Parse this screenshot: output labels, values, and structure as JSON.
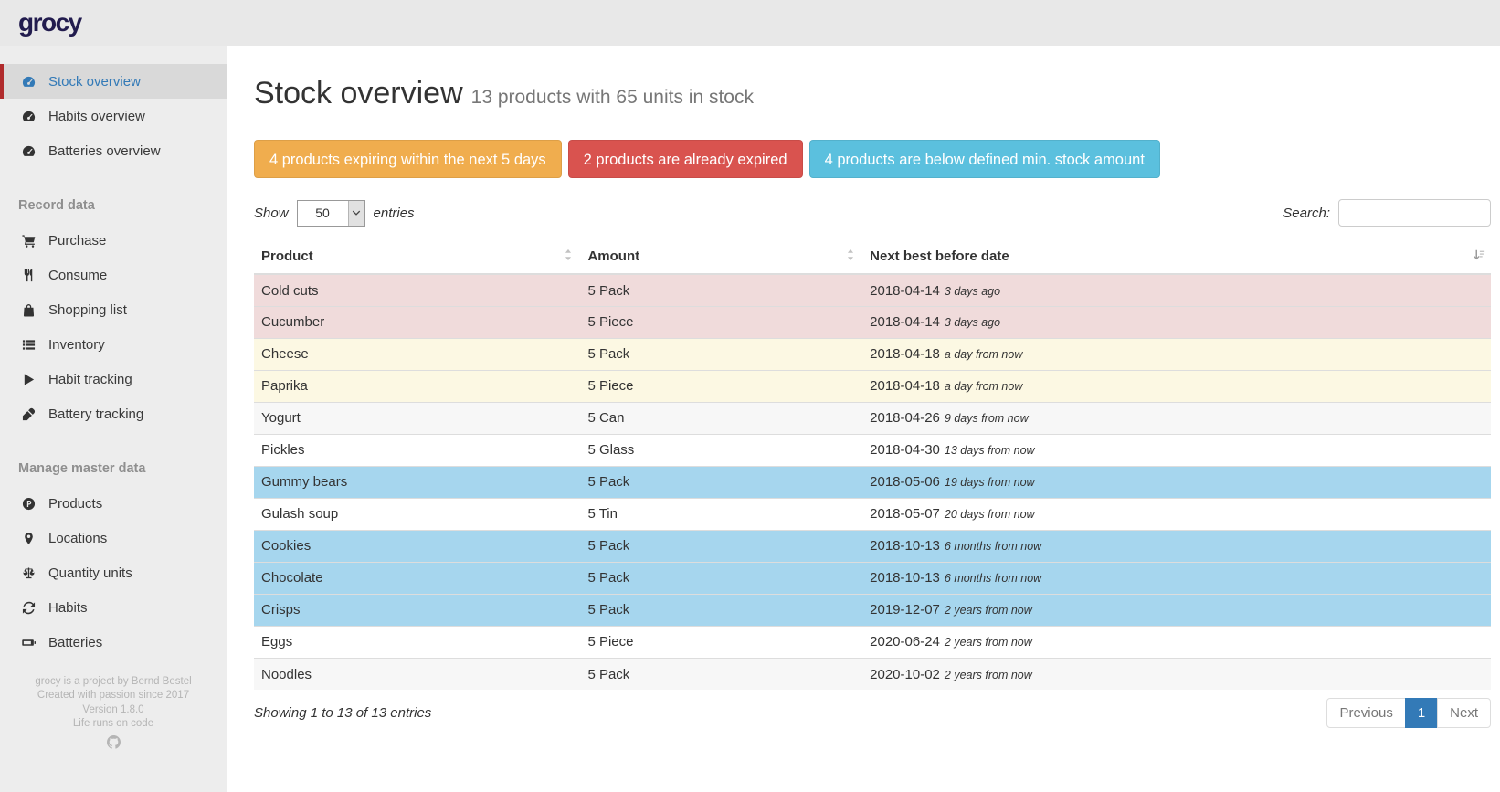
{
  "header": {
    "logo": "grocy"
  },
  "sidebar": {
    "items": [
      {
        "label": "Stock overview",
        "icon": "tachometer",
        "active": true
      },
      {
        "label": "Habits overview",
        "icon": "tachometer"
      },
      {
        "label": "Batteries overview",
        "icon": "tachometer"
      },
      {
        "type": "section",
        "label": "Record data"
      },
      {
        "label": "Purchase",
        "icon": "cart"
      },
      {
        "label": "Consume",
        "icon": "utensils"
      },
      {
        "label": "Shopping list",
        "icon": "bag"
      },
      {
        "label": "Inventory",
        "icon": "list"
      },
      {
        "label": "Habit tracking",
        "icon": "play"
      },
      {
        "label": "Battery tracking",
        "icon": "pen"
      },
      {
        "type": "section",
        "label": "Manage master data"
      },
      {
        "label": "Products",
        "icon": "p-circle"
      },
      {
        "label": "Locations",
        "icon": "marker"
      },
      {
        "label": "Quantity units",
        "icon": "scale"
      },
      {
        "label": "Habits",
        "icon": "sync"
      },
      {
        "label": "Batteries",
        "icon": "battery"
      }
    ],
    "footer_lines": [
      "grocy is a project by Bernd Bestel",
      "Created with passion since 2017",
      "Version 1.8.0",
      "Life runs on code"
    ]
  },
  "main": {
    "title": "Stock overview",
    "subtitle": "13 products with 65 units in stock",
    "alerts": [
      {
        "name": "alert-expiring-soon",
        "label": "4 products expiring within the next 5 days",
        "color": "#f0ad4e"
      },
      {
        "name": "alert-already-expired",
        "label": "2 products are already expired",
        "color": "#d9534f"
      },
      {
        "name": "alert-below-min-stock",
        "label": "4 products are below defined min. stock amount",
        "color": "#5bc0de"
      }
    ],
    "controls": {
      "show_label": "Show",
      "page_length": "50",
      "entries_label": "entries",
      "search_label": "Search:",
      "search_value": ""
    },
    "table": {
      "columns": [
        "Product",
        "Amount",
        "Next best before date"
      ],
      "rows": [
        {
          "product": "Cold cuts",
          "amount": "5 Pack",
          "date": "2018-04-14",
          "ago": "3 days ago",
          "state": "danger"
        },
        {
          "product": "Cucumber",
          "amount": "5 Piece",
          "date": "2018-04-14",
          "ago": "3 days ago",
          "state": "danger"
        },
        {
          "product": "Cheese",
          "amount": "5 Pack",
          "date": "2018-04-18",
          "ago": "a day from now",
          "state": "warning"
        },
        {
          "product": "Paprika",
          "amount": "5 Piece",
          "date": "2018-04-18",
          "ago": "a day from now",
          "state": "warning"
        },
        {
          "product": "Yogurt",
          "amount": "5 Can",
          "date": "2018-04-26",
          "ago": "9 days from now",
          "state": "stripe"
        },
        {
          "product": "Pickles",
          "amount": "5 Glass",
          "date": "2018-04-30",
          "ago": "13 days from now",
          "state": ""
        },
        {
          "product": "Gummy bears",
          "amount": "5 Pack",
          "date": "2018-05-06",
          "ago": "19 days from now",
          "state": "info"
        },
        {
          "product": "Gulash soup",
          "amount": "5 Tin",
          "date": "2018-05-07",
          "ago": "20 days from now",
          "state": ""
        },
        {
          "product": "Cookies",
          "amount": "5 Pack",
          "date": "2018-10-13",
          "ago": "6 months from now",
          "state": "info"
        },
        {
          "product": "Chocolate",
          "amount": "5 Pack",
          "date": "2018-10-13",
          "ago": "6 months from now",
          "state": "info"
        },
        {
          "product": "Crisps",
          "amount": "5 Pack",
          "date": "2019-12-07",
          "ago": "2 years from now",
          "state": "info"
        },
        {
          "product": "Eggs",
          "amount": "5 Piece",
          "date": "2020-06-24",
          "ago": "2 years from now",
          "state": ""
        },
        {
          "product": "Noodles",
          "amount": "5 Pack",
          "date": "2020-10-02",
          "ago": "2 years from now",
          "state": "stripe"
        }
      ]
    },
    "table_footer": {
      "info": "Showing 1 to 13 of 13 entries",
      "pagination": {
        "previous": "Previous",
        "page": "1",
        "next": "Next"
      }
    }
  },
  "colors": {
    "topbar_bg": "#e8e8e8",
    "sidebar_bg": "#ededed",
    "sidebar_active_bg": "#d9d9d9",
    "sidebar_active_border": "#b02b2c",
    "link_blue": "#337ab7",
    "row_danger": "#f0dbdb",
    "row_warning": "#fcf8e3",
    "row_info": "#a6d6ee",
    "row_stripe": "#f7f7f7"
  }
}
